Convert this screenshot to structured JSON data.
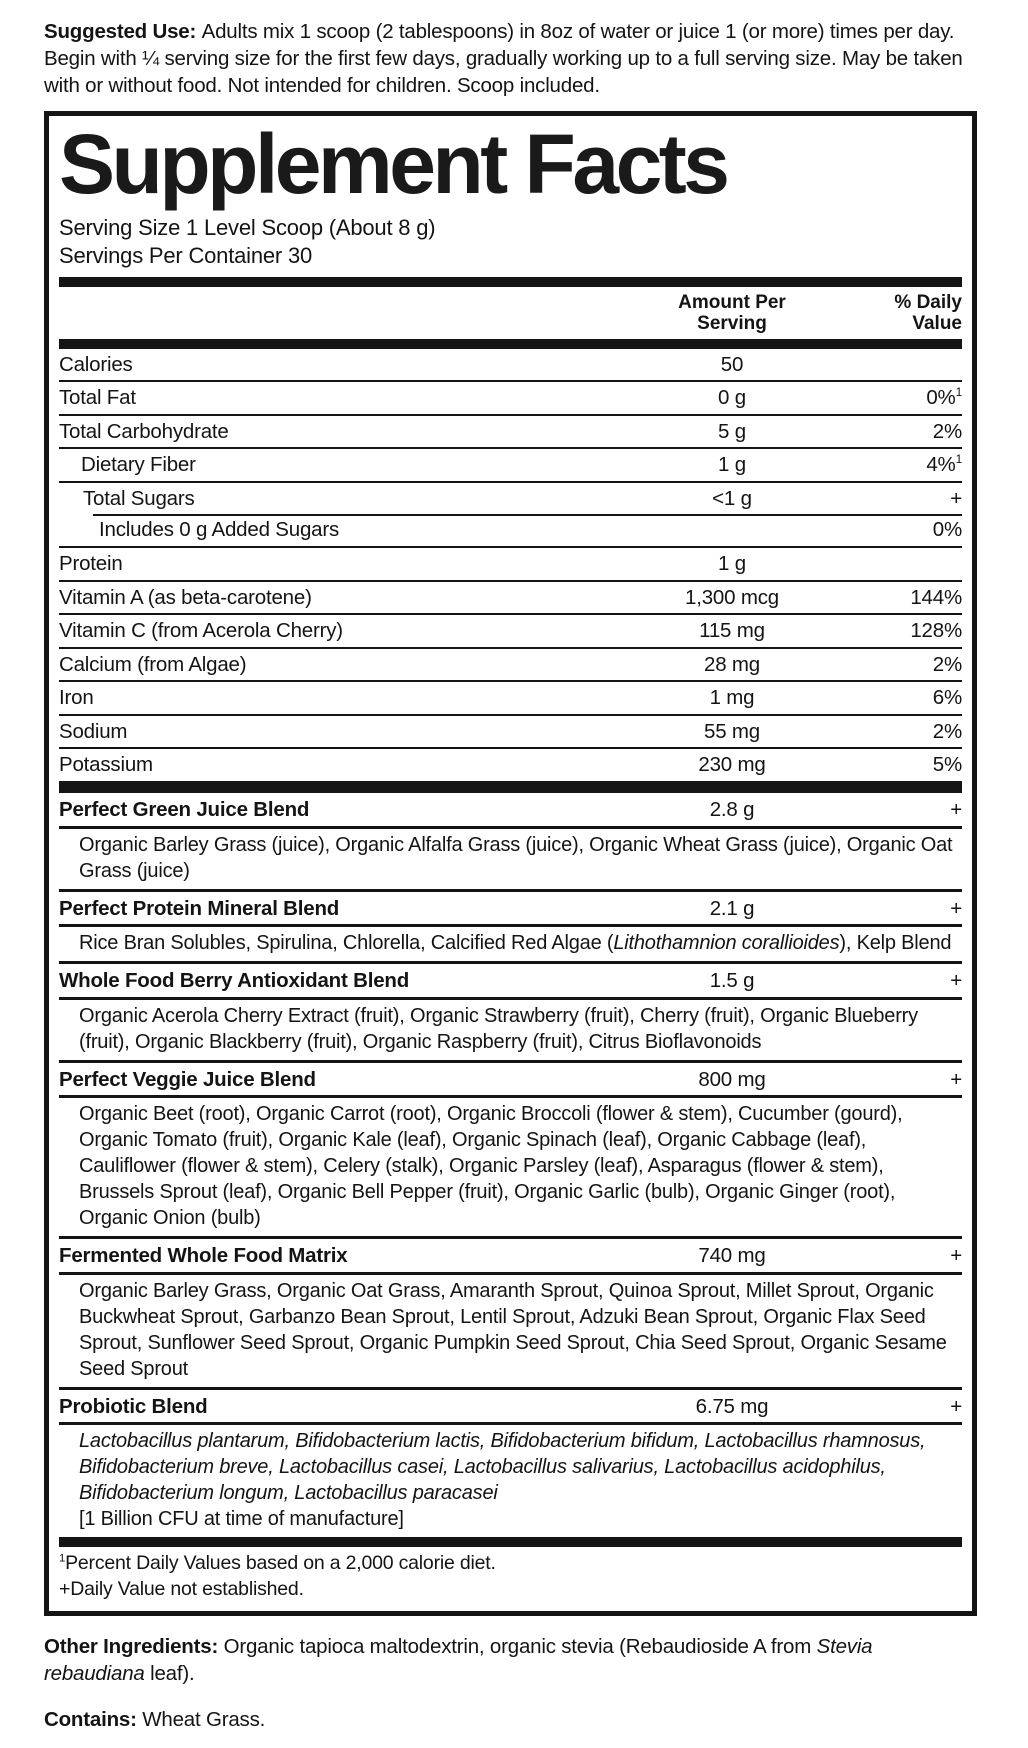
{
  "suggested_use_parts": [
    {
      "text": "Suggested Use: ",
      "bold": true
    },
    {
      "text": "Adults mix 1 scoop (2 tablespoons) in 8oz of water or juice 1 (or more) times per day. Begin with ¼ serving size for the first few days, gradually working up to a full serving size. May be taken with or without food. Not intended for children. Scoop included."
    }
  ],
  "panel": {
    "title": "Supplement Facts",
    "serving_size": "Serving Size 1 Level Scoop (About 8 g)",
    "servings_per_container": "Servings Per Container 30",
    "columns": {
      "amount": [
        "Amount Per",
        "Serving"
      ],
      "dv": [
        "% Daily",
        "Value"
      ]
    },
    "nutrients": [
      {
        "name": "Calories",
        "amount": "50",
        "dv": "",
        "dv_sup": "",
        "indent": 0
      },
      {
        "name": "Total Fat",
        "amount": "0 g",
        "dv": "0%",
        "dv_sup": "1",
        "indent": 0
      },
      {
        "name": "Total Carbohydrate",
        "amount": "5 g",
        "dv": "2%",
        "dv_sup": "",
        "indent": 0
      },
      {
        "name": "Dietary Fiber",
        "amount": "1 g",
        "dv": "4%",
        "dv_sup": "1",
        "indent": 1
      },
      {
        "name": "Total Sugars",
        "amount": "<1 g",
        "dv": "+",
        "dv_sup": "",
        "indent": 2
      },
      {
        "name": "Includes 0 g Added Sugars",
        "amount": "",
        "dv": "0%",
        "dv_sup": "",
        "indent": 3,
        "indent_sep": true
      },
      {
        "name": "Protein",
        "amount": "1 g",
        "dv": "",
        "dv_sup": "",
        "indent": 0
      },
      {
        "name": "Vitamin A (as beta-carotene)",
        "amount": "1,300 mcg",
        "dv": "144%",
        "dv_sup": "",
        "indent": 0
      },
      {
        "name": "Vitamin C (from Acerola Cherry)",
        "amount": "115 mg",
        "dv": "128%",
        "dv_sup": "",
        "indent": 0
      },
      {
        "name": "Calcium (from Algae)",
        "amount": "28 mg",
        "dv": "2%",
        "dv_sup": "",
        "indent": 0
      },
      {
        "name": "Iron",
        "amount": "1 mg",
        "dv": "6%",
        "dv_sup": "",
        "indent": 0
      },
      {
        "name": "Sodium",
        "amount": "55 mg",
        "dv": "2%",
        "dv_sup": "",
        "indent": 0
      },
      {
        "name": "Potassium",
        "amount": "230 mg",
        "dv": "5%",
        "dv_sup": "",
        "indent": 0
      }
    ],
    "blends": [
      {
        "name": "Perfect Green Juice Blend",
        "amount": "2.8 g",
        "dv": "+",
        "ingredients_parts": [
          {
            "text": "Organic Barley Grass (juice), Organic Alfalfa Grass (juice), Organic Wheat Grass (juice), Organic Oat Grass (juice)"
          }
        ]
      },
      {
        "name": "Perfect Protein Mineral Blend",
        "amount": "2.1 g",
        "dv": "+",
        "ingredients_parts": [
          {
            "text": "Rice Bran Solubles, Spirulina, Chlorella, Calcified Red Algae ("
          },
          {
            "text": "Lithothamnion corallioides",
            "italic": true
          },
          {
            "text": "), Kelp Blend"
          }
        ]
      },
      {
        "name": "Whole Food Berry Antioxidant Blend",
        "amount": "1.5 g",
        "dv": "+",
        "ingredients_parts": [
          {
            "text": "Organic Acerola Cherry Extract (fruit), Organic Strawberry (fruit), Cherry (fruit), Organic Blueberry (fruit), Organic Blackberry (fruit), Organic Raspberry (fruit), Citrus Bioflavonoids"
          }
        ]
      },
      {
        "name": "Perfect Veggie Juice Blend",
        "amount": "800 mg",
        "dv": "+",
        "ingredients_parts": [
          {
            "text": "Organic Beet (root), Organic Carrot (root), Organic Broccoli (flower & stem), Cucumber (gourd), Organic Tomato (fruit), Organic Kale (leaf), Organic Spinach (leaf), Organic Cabbage (leaf), Cauliflower (flower & stem), Celery (stalk), Organic Parsley (leaf), Asparagus (flower & stem), Brussels Sprout (leaf), Organic Bell Pepper (fruit), Organic Garlic (bulb), Organic Ginger (root), Organic Onion (bulb)"
          }
        ]
      },
      {
        "name": "Fermented Whole Food Matrix",
        "amount": "740 mg",
        "dv": "+",
        "ingredients_parts": [
          {
            "text": "Organic Barley Grass, Organic Oat Grass, Amaranth Sprout, Quinoa Sprout, Millet Sprout, Organic Buckwheat Sprout, Garbanzo Bean Sprout, Lentil Sprout, Adzuki Bean Sprout, Organic Flax Seed Sprout, Sunflower Seed Sprout, Organic Pumpkin Seed Sprout, Chia Seed Sprout, Organic Sesame Seed Sprout"
          }
        ]
      },
      {
        "name": "Probiotic Blend",
        "amount": "6.75 mg",
        "dv": "+",
        "ingredients_parts": [
          {
            "text": "Lactobacillus plantarum, Bifidobacterium lactis, Bifidobacterium bifidum, Lactobacillus rhamnosus, Bifidobacterium breve, Lactobacillus casei, Lactobacillus salivarius, Lactobacillus acidophilus, Bifidobacterium longum, Lactobacillus paracasei",
            "italic": true
          }
        ],
        "note": "[1 Billion CFU at time of manufacture]"
      }
    ],
    "footnotes": [
      {
        "sup": "1",
        "text": "Percent Daily Values based on a 2,000 calorie diet."
      },
      {
        "sup": "",
        "text": "+Daily Value not established."
      }
    ]
  },
  "other_ingredients_parts": [
    {
      "text": "Other Ingredients: ",
      "bold": true
    },
    {
      "text": "Organic tapioca maltodextrin, organic stevia (Rebaudioside A from "
    },
    {
      "text": "Stevia rebaudiana",
      "italic": true
    },
    {
      "text": " leaf)."
    }
  ],
  "contains_parts": [
    {
      "text": "Contains: ",
      "bold": true
    },
    {
      "text": "Wheat Grass."
    }
  ],
  "colors": {
    "ink": "#141414",
    "paper": "#ffffff"
  }
}
